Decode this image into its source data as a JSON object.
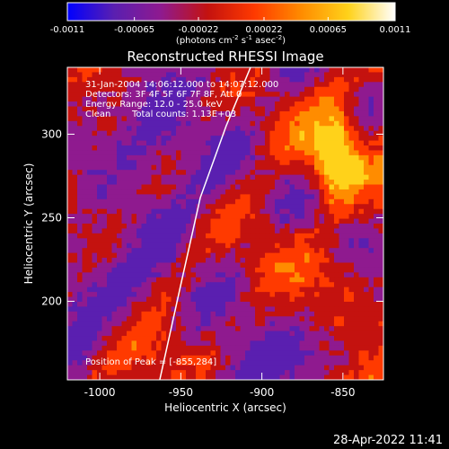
{
  "colorbar": {
    "ticks": [
      "-0.0011",
      "-0.00065",
      "-0.00022",
      "0.00022",
      "0.00065",
      "0.0011"
    ],
    "tick_values": [
      -0.0011,
      -0.00065,
      -0.00022,
      0.00022,
      0.00065,
      0.0011
    ],
    "range": [
      -0.0011,
      0.0011
    ],
    "units_prefix": "(photons cm",
    "units_exp1": "-2",
    "units_mid": " s",
    "units_exp2": "-1",
    "units_mid2": " asec",
    "units_exp3": "-2",
    "units_suffix": ")"
  },
  "annotations": {
    "line1": "31-Jan-2004 14:06:12.000 to 14:07:12.000",
    "line2": "Detectors: 3F 4F 5F 6F 7F 8F, Att 0",
    "line3": "Energy Range: 12.0 - 25.0 keV",
    "line4_a": "Clean",
    "line4_b": "Total counts: 1.13E+03",
    "peak": "Position of Peak = [-855,284]"
  },
  "footer": {
    "timestamp": "28-Apr-2022 11:41"
  },
  "chart_data": {
    "type": "heatmap",
    "title": "Reconstructed RHESSI Image",
    "xlabel": "Heliocentric X (arcsec)",
    "ylabel": "Heliocentric Y (arcsec)",
    "xlim": [
      -1020,
      -825
    ],
    "ylim": [
      153,
      340
    ],
    "x_ticks": [
      -1000,
      -950,
      -900,
      -850
    ],
    "y_ticks": [
      200,
      250,
      300
    ],
    "x_tick_labels": [
      "-1000",
      "-950",
      "-900",
      "-850"
    ],
    "y_tick_labels": [
      "200",
      "250",
      "300"
    ],
    "colormap": [
      "#0000ff",
      "#5a1fb0",
      "#8f1a8f",
      "#c4120f",
      "#ff3a00",
      "#ff8c00",
      "#ffd21a",
      "#ffffff"
    ],
    "limb_curve": [
      [
        -963,
        153
      ],
      [
        -950,
        210
      ],
      [
        -938,
        262
      ],
      [
        -922,
        305
      ],
      [
        -907,
        340
      ]
    ],
    "peak": [
      -855,
      284
    ],
    "grid": false
  }
}
